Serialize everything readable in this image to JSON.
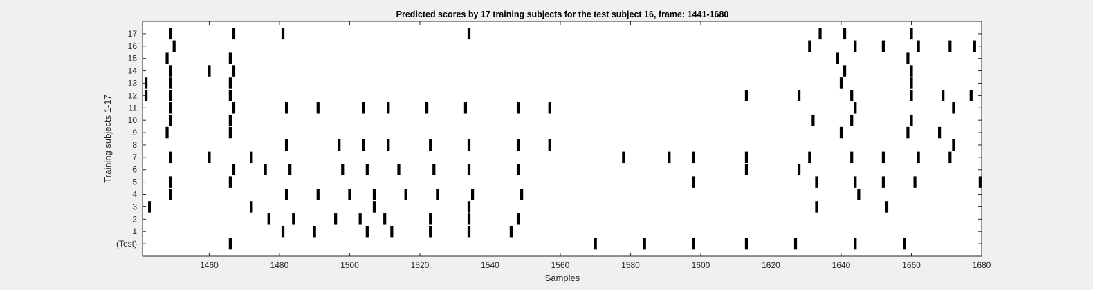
{
  "chart_data": {
    "type": "raster",
    "title": "Predicted scores by 17 training subjects for the test subject 16, frame: 1441-1680",
    "xlabel": "Samples",
    "ylabel": "Training subjects 1-17",
    "xlim": [
      1441,
      1680
    ],
    "xticks": [
      1460,
      1480,
      1500,
      1520,
      1540,
      1560,
      1580,
      1600,
      1620,
      1640,
      1660,
      1680
    ],
    "grid": false,
    "legend": "none",
    "mark_color": "#000000",
    "rows": [
      {
        "label": "(Test)",
        "events": [
          1466,
          1570,
          1584,
          1598,
          1613,
          1627,
          1644,
          1658
        ]
      },
      {
        "label": "1",
        "events": [
          1481,
          1490,
          1505,
          1512,
          1523,
          1534,
          1546
        ]
      },
      {
        "label": "2",
        "events": [
          1477,
          1484,
          1496,
          1503,
          1510,
          1523,
          1534,
          1548
        ]
      },
      {
        "label": "3",
        "events": [
          1443,
          1472,
          1507,
          1534,
          1633,
          1653
        ]
      },
      {
        "label": "4",
        "events": [
          1449,
          1482,
          1491,
          1500,
          1507,
          1516,
          1525,
          1535,
          1549,
          1645
        ]
      },
      {
        "label": "5",
        "events": [
          1449,
          1466,
          1598,
          1633,
          1644,
          1652,
          1661,
          1680
        ]
      },
      {
        "label": "6",
        "events": [
          1467,
          1476,
          1483,
          1498,
          1505,
          1514,
          1524,
          1534,
          1548,
          1613,
          1628
        ]
      },
      {
        "label": "7",
        "events": [
          1449,
          1460,
          1472,
          1578,
          1591,
          1598,
          1613,
          1631,
          1643,
          1652,
          1662,
          1671
        ]
      },
      {
        "label": "8",
        "events": [
          1482,
          1497,
          1504,
          1511,
          1523,
          1534,
          1548,
          1557,
          1672
        ]
      },
      {
        "label": "9",
        "events": [
          1448,
          1466,
          1640,
          1659,
          1668
        ]
      },
      {
        "label": "10",
        "events": [
          1449,
          1466,
          1632,
          1643,
          1660
        ]
      },
      {
        "label": "11",
        "events": [
          1449,
          1467,
          1482,
          1491,
          1504,
          1511,
          1522,
          1533,
          1548,
          1557,
          1644,
          1672
        ]
      },
      {
        "label": "12",
        "events": [
          1442,
          1449,
          1466,
          1613,
          1628,
          1643,
          1660,
          1669,
          1677
        ]
      },
      {
        "label": "13",
        "events": [
          1442,
          1449,
          1466,
          1640,
          1660
        ]
      },
      {
        "label": "14",
        "events": [
          1449,
          1460,
          1467,
          1641,
          1660
        ]
      },
      {
        "label": "15",
        "events": [
          1448,
          1466,
          1639,
          1659
        ]
      },
      {
        "label": "16",
        "events": [
          1450,
          1631,
          1644,
          1652,
          1662,
          1671,
          1678
        ]
      },
      {
        "label": "17",
        "events": [
          1449,
          1467,
          1481,
          1534,
          1634,
          1641,
          1660
        ]
      }
    ]
  }
}
